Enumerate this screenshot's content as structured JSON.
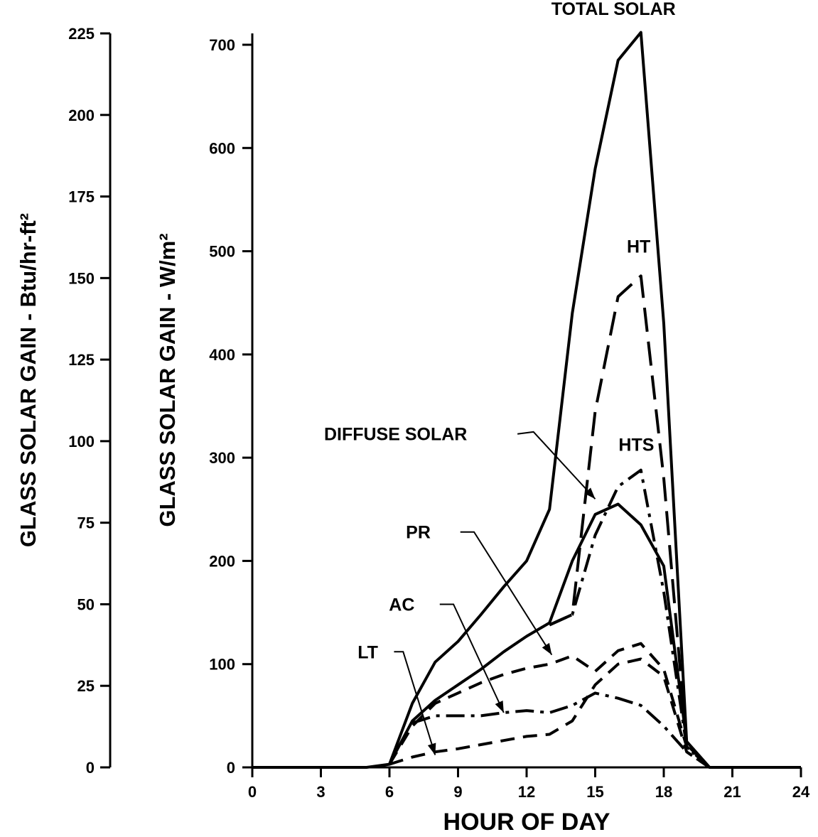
{
  "chart_data": {
    "type": "line",
    "title": "",
    "xlabel": "HOUR OF DAY",
    "ylabel": "GLASS SOLAR GAIN - W/m²",
    "ylabel_left": "GLASS SOLAR GAIN - Btu/hr-ft²",
    "xlim": [
      0,
      24
    ],
    "ylim": [
      0,
      700
    ],
    "ylim_left": [
      0,
      225
    ],
    "x_ticks": [
      "0",
      "3",
      "6",
      "9",
      "12",
      "15",
      "18",
      "21",
      "24"
    ],
    "y_ticks": [
      "0",
      "100",
      "200",
      "300",
      "400",
      "500",
      "600",
      "700"
    ],
    "y_ticks_left": [
      "0",
      "25",
      "50",
      "75",
      "100",
      "125",
      "150",
      "175",
      "200",
      "225"
    ],
    "grid": false,
    "x": [
      0,
      1,
      2,
      3,
      4,
      5,
      6,
      7,
      8,
      9,
      10,
      11,
      12,
      13,
      14,
      15,
      16,
      17,
      18,
      19,
      20,
      21,
      22,
      23,
      24
    ],
    "series": [
      {
        "name": "TOTAL SOLAR",
        "style": "solid",
        "values": [
          0,
          0,
          0,
          0,
          0,
          0,
          3,
          62,
          102,
          122,
          148,
          175,
          200,
          250,
          440,
          580,
          685,
          712,
          430,
          25,
          0,
          0,
          0,
          0,
          0
        ]
      },
      {
        "name": "HT",
        "style": "long-dash",
        "values": [
          null,
          null,
          null,
          null,
          null,
          null,
          null,
          null,
          null,
          null,
          null,
          null,
          null,
          138,
          148,
          345,
          456,
          476,
          280,
          22,
          0,
          null,
          null,
          null,
          null
        ]
      },
      {
        "name": "DIFFUSE SOLAR",
        "style": "solid",
        "values": [
          null,
          null,
          null,
          null,
          null,
          null,
          3,
          45,
          65,
          80,
          95,
          112,
          127,
          140,
          200,
          245,
          255,
          235,
          195,
          25,
          0,
          null,
          null,
          null,
          null
        ]
      },
      {
        "name": "HTS",
        "style": "dash-dot",
        "values": [
          null,
          null,
          null,
          null,
          null,
          null,
          null,
          null,
          null,
          null,
          null,
          null,
          null,
          138,
          148,
          225,
          272,
          288,
          170,
          20,
          0,
          null,
          null,
          null,
          null
        ]
      },
      {
        "name": "PR",
        "style": "dash",
        "values": [
          null,
          null,
          null,
          null,
          null,
          null,
          3,
          40,
          62,
          72,
          82,
          90,
          96,
          100,
          108,
          93,
          113,
          120,
          95,
          20,
          0,
          null,
          null,
          null,
          null
        ]
      },
      {
        "name": "AC",
        "style": "dash-dot",
        "values": [
          null,
          null,
          null,
          null,
          null,
          null,
          null,
          43,
          50,
          50,
          50,
          53,
          55,
          53,
          60,
          72,
          67,
          60,
          40,
          15,
          0,
          null,
          null,
          null,
          null
        ]
      },
      {
        "name": "LT",
        "style": "dash",
        "values": [
          null,
          null,
          null,
          null,
          null,
          null,
          3,
          10,
          15,
          18,
          22,
          26,
          30,
          32,
          45,
          80,
          100,
          105,
          88,
          15,
          0,
          null,
          null,
          null,
          null
        ]
      }
    ],
    "annotations": [
      {
        "text": "TOTAL SOLAR",
        "x": 15.8,
        "y": 735
      },
      {
        "text": "HT",
        "x": 16.9,
        "y": 505
      },
      {
        "text": "HTS",
        "x": 16.8,
        "y": 313
      },
      {
        "text": "DIFFUSE SOLAR",
        "x": 9.4,
        "y": 323
      },
      {
        "text": "PR",
        "x": 7.8,
        "y": 228
      },
      {
        "text": "AC",
        "x": 7.1,
        "y": 158
      },
      {
        "text": "LT",
        "x": 5.5,
        "y": 112
      }
    ],
    "arrows": [
      {
        "label": "DIFFUSE SOLAR",
        "from": [
          11.6,
          323
        ],
        "bend": [
          12.3,
          325
        ],
        "to": [
          15,
          260
        ]
      },
      {
        "label": "PR",
        "from": [
          9.1,
          228
        ],
        "bend": [
          9.7,
          228
        ],
        "to": [
          13.1,
          109
        ]
      },
      {
        "label": "AC",
        "from": [
          8.2,
          158
        ],
        "bend": [
          8.8,
          158
        ],
        "to": [
          11.0,
          53
        ]
      },
      {
        "label": "LT",
        "from": [
          6.2,
          112
        ],
        "bend": [
          6.6,
          112
        ],
        "to": [
          8.0,
          12
        ]
      }
    ]
  }
}
